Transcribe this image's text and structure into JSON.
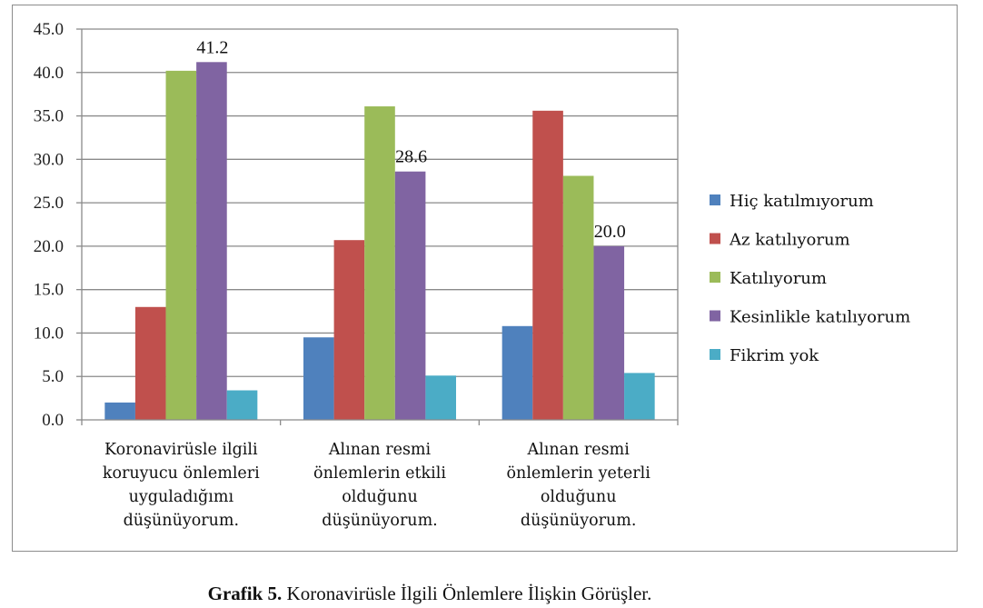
{
  "chart_data": {
    "type": "bar",
    "categories": [
      [
        "Koronavirüsle ilgili",
        "koruyucu önlemleri",
        "uyguladığımı",
        "düşünüyorum."
      ],
      [
        "Alınan resmi",
        "önlemlerin etkili",
        "olduğunu",
        "düşünüyorum."
      ],
      [
        "Alınan resmi",
        "önlemlerin yeterli",
        "olduğunu",
        "düşünüyorum."
      ]
    ],
    "series": [
      {
        "name": "Hiç katılmıyorum",
        "color": "#4f81bd",
        "values": [
          2.0,
          9.5,
          10.8
        ]
      },
      {
        "name": "Az katılıyorum",
        "color": "#c0504d",
        "values": [
          13.0,
          20.7,
          35.6
        ]
      },
      {
        "name": "Katılıyorum",
        "color": "#9bbb59",
        "values": [
          40.2,
          36.1,
          28.1
        ]
      },
      {
        "name": "Kesinlikle katılıyorum",
        "color": "#8064a2",
        "values": [
          41.2,
          28.6,
          20.0
        ]
      },
      {
        "name": "Fikrim yok",
        "color": "#4bacc6",
        "values": [
          3.4,
          5.1,
          5.4
        ]
      }
    ],
    "data_labels": [
      {
        "series": 3,
        "category": 0,
        "text": "41.2"
      },
      {
        "series": 3,
        "category": 1,
        "text": "28.6"
      },
      {
        "series": 3,
        "category": 2,
        "text": "20.0"
      }
    ],
    "yticks": [
      "0.0",
      "5.0",
      "10.0",
      "15.0",
      "20.0",
      "25.0",
      "30.0",
      "35.0",
      "40.0",
      "45.0"
    ],
    "ylim": [
      0,
      45
    ],
    "grid": true,
    "legend": "right",
    "title": "",
    "xlabel": "",
    "ylabel": ""
  },
  "caption": {
    "label": "Grafik 5.",
    "text": " Koronavirüsle İlgili Önlemlere İlişkin Görüşler."
  }
}
